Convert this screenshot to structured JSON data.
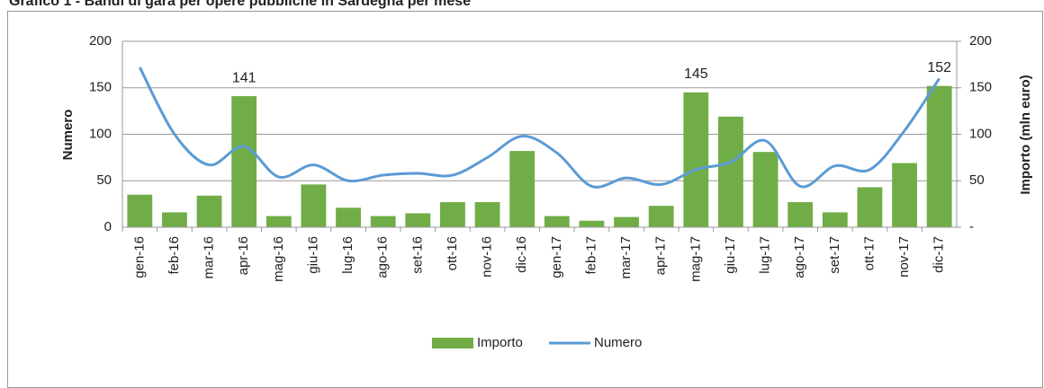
{
  "chart_data": {
    "type": "bar_line",
    "title": "Grafico 1 - Bandi di gara per opere pubbliche in Sardegna per mese",
    "ylabel": "Numero",
    "y2label": "Importo (mln euro)",
    "categories": [
      "gen-16",
      "feb-16",
      "mar-16",
      "apr-16",
      "mag-16",
      "giu-16",
      "lug-16",
      "ago-16",
      "set-16",
      "ott-16",
      "nov-16",
      "dic-16",
      "gen-17",
      "feb-17",
      "mar-17",
      "apr-17",
      "mag-17",
      "giu-17",
      "lug-17",
      "ago-17",
      "set-17",
      "ott-17",
      "nov-17",
      "dic-17"
    ],
    "series": [
      {
        "name": "Importo",
        "type": "bar",
        "axis": "y2",
        "color": "#70ad47",
        "values": [
          35,
          16,
          34,
          141,
          12,
          46,
          21,
          12,
          15,
          27,
          27,
          82,
          12,
          7,
          11,
          23,
          145,
          119,
          81,
          27,
          16,
          43,
          69,
          152
        ],
        "value_labels": [
          null,
          null,
          null,
          "141",
          null,
          null,
          null,
          null,
          null,
          null,
          null,
          null,
          null,
          null,
          null,
          null,
          "145",
          null,
          null,
          null,
          null,
          null,
          null,
          "152"
        ]
      },
      {
        "name": "Numero",
        "type": "line",
        "color": "#5b9bd5",
        "values": [
          172,
          100,
          67,
          87,
          54,
          67,
          50,
          56,
          58,
          56,
          75,
          98,
          80,
          44,
          53,
          46,
          62,
          70,
          93,
          44,
          66,
          62,
          104,
          160
        ]
      }
    ],
    "ylim": [
      0,
      200
    ],
    "yticks": [
      0,
      50,
      100,
      150,
      200
    ],
    "y2lim": [
      0,
      200
    ],
    "y2ticks": [
      {
        "value": 0,
        "label": "-"
      },
      50,
      100,
      150,
      200
    ],
    "grid": true,
    "legend": "bottom"
  }
}
